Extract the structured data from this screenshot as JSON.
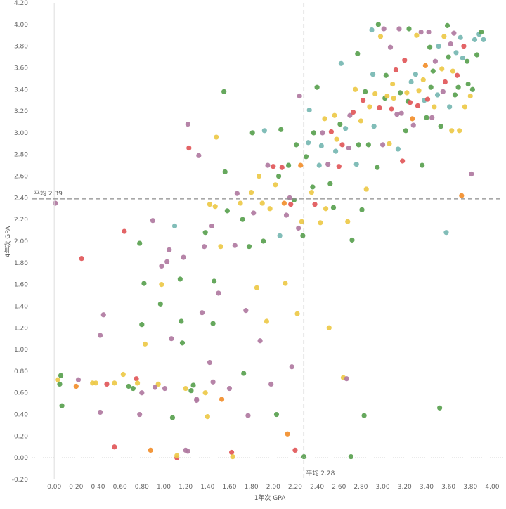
{
  "chart_data": {
    "type": "scatter",
    "title": "",
    "xlabel": "1年次 GPA",
    "ylabel": "4年次 GPA",
    "xlim": [
      -0.2,
      4.1
    ],
    "ylim": [
      -0.2,
      4.2
    ],
    "xticks": [
      "0.00",
      "0.20",
      "0.40",
      "0.60",
      "0.80",
      "1.00",
      "1.20",
      "1.40",
      "1.60",
      "1.80",
      "2.00",
      "2.20",
      "2.40",
      "2.60",
      "2.80",
      "3.00",
      "3.20",
      "3.40",
      "3.60",
      "3.80",
      "4.00"
    ],
    "yticks": [
      "-0.20",
      "0.00",
      "0.20",
      "0.40",
      "0.60",
      "0.80",
      "1.00",
      "1.20",
      "1.40",
      "1.60",
      "1.80",
      "2.00",
      "2.20",
      "2.40",
      "2.60",
      "2.80",
      "3.00",
      "3.20",
      "3.40",
      "3.60",
      "3.80",
      "4.00",
      "4.20"
    ],
    "grid": false,
    "reference_lines": [
      {
        "axis": "y",
        "value": 2.39,
        "label": "平均 2.39"
      },
      {
        "axis": "x",
        "value": 2.28,
        "label": "平均 2.28"
      }
    ],
    "palette": {
      "green": "#59a14f",
      "yellow": "#edc948",
      "purple": "#b07aa1",
      "red": "#e15759",
      "orange": "#f28e2b",
      "teal": "#76b7b2",
      "blue": "#4e79a7"
    },
    "points": [
      [
        0.03,
        0.72,
        "yellow"
      ],
      [
        0.06,
        0.76,
        "green"
      ],
      [
        0.05,
        0.68,
        "green"
      ],
      [
        0.07,
        0.48,
        "green"
      ],
      [
        0.01,
        2.35,
        "purple"
      ],
      [
        0.2,
        0.66,
        "orange"
      ],
      [
        0.22,
        0.72,
        "purple"
      ],
      [
        0.25,
        1.84,
        "red"
      ],
      [
        0.35,
        0.69,
        "yellow"
      ],
      [
        0.38,
        0.69,
        "yellow"
      ],
      [
        0.42,
        0.42,
        "purple"
      ],
      [
        0.45,
        1.32,
        "purple"
      ],
      [
        0.42,
        1.13,
        "purple"
      ],
      [
        0.48,
        0.68,
        "red"
      ],
      [
        0.55,
        0.69,
        "yellow"
      ],
      [
        0.55,
        0.1,
        "red"
      ],
      [
        0.63,
        0.77,
        "yellow"
      ],
      [
        0.64,
        2.09,
        "red"
      ],
      [
        0.68,
        0.66,
        "green"
      ],
      [
        0.72,
        0.64,
        "green"
      ],
      [
        0.75,
        0.73,
        "red"
      ],
      [
        0.76,
        0.69,
        "yellow"
      ],
      [
        0.8,
        0.6,
        "purple"
      ],
      [
        0.78,
        0.4,
        "purple"
      ],
      [
        0.78,
        1.98,
        "green"
      ],
      [
        0.8,
        1.23,
        "green"
      ],
      [
        0.82,
        1.61,
        "green"
      ],
      [
        0.83,
        1.05,
        "yellow"
      ],
      [
        0.88,
        0.07,
        "orange"
      ],
      [
        0.9,
        2.19,
        "purple"
      ],
      [
        0.95,
        0.68,
        "yellow"
      ],
      [
        0.92,
        0.65,
        "purple"
      ],
      [
        0.97,
        1.42,
        "green"
      ],
      [
        0.98,
        1.6,
        "yellow"
      ],
      [
        0.98,
        1.77,
        "purple"
      ],
      [
        1.01,
        0.64,
        "purple"
      ],
      [
        1.03,
        1.81,
        "purple"
      ],
      [
        1.05,
        1.92,
        "purple"
      ],
      [
        1.07,
        1.1,
        "purple"
      ],
      [
        1.08,
        0.37,
        "green"
      ],
      [
        1.1,
        2.14,
        "teal"
      ],
      [
        1.12,
        0.0,
        "red"
      ],
      [
        1.12,
        0.02,
        "yellow"
      ],
      [
        1.15,
        1.65,
        "green"
      ],
      [
        1.16,
        1.26,
        "green"
      ],
      [
        1.17,
        1.06,
        "green"
      ],
      [
        1.18,
        1.85,
        "purple"
      ],
      [
        1.2,
        0.07,
        "purple"
      ],
      [
        1.22,
        0.06,
        "purple"
      ],
      [
        1.2,
        0.64,
        "yellow"
      ],
      [
        1.22,
        3.08,
        "purple"
      ],
      [
        1.23,
        2.86,
        "red"
      ],
      [
        1.25,
        0.62,
        "green"
      ],
      [
        1.27,
        0.67,
        "green"
      ],
      [
        1.3,
        0.53,
        "purple"
      ],
      [
        1.3,
        0.54,
        "purple"
      ],
      [
        1.32,
        2.79,
        "purple"
      ],
      [
        1.35,
        1.34,
        "purple"
      ],
      [
        1.37,
        1.95,
        "purple"
      ],
      [
        1.38,
        2.08,
        "green"
      ],
      [
        1.38,
        0.6,
        "yellow"
      ],
      [
        1.4,
        0.38,
        "yellow"
      ],
      [
        1.42,
        0.88,
        "purple"
      ],
      [
        1.42,
        2.34,
        "yellow"
      ],
      [
        1.44,
        2.14,
        "purple"
      ],
      [
        1.45,
        0.7,
        "purple"
      ],
      [
        1.45,
        1.24,
        "green"
      ],
      [
        1.46,
        1.63,
        "green"
      ],
      [
        1.47,
        2.32,
        "yellow"
      ],
      [
        1.48,
        2.96,
        "yellow"
      ],
      [
        1.5,
        1.52,
        "purple"
      ],
      [
        1.52,
        1.95,
        "yellow"
      ],
      [
        1.53,
        0.54,
        "orange"
      ],
      [
        1.55,
        3.38,
        "green"
      ],
      [
        1.56,
        2.64,
        "green"
      ],
      [
        1.58,
        2.28,
        "green"
      ],
      [
        1.6,
        0.64,
        "purple"
      ],
      [
        1.62,
        0.05,
        "red"
      ],
      [
        1.63,
        0.01,
        "yellow"
      ],
      [
        1.65,
        1.96,
        "purple"
      ],
      [
        1.67,
        2.44,
        "purple"
      ],
      [
        1.7,
        2.35,
        "yellow"
      ],
      [
        1.72,
        2.2,
        "green"
      ],
      [
        1.73,
        0.78,
        "green"
      ],
      [
        1.75,
        1.36,
        "purple"
      ],
      [
        1.77,
        0.39,
        "purple"
      ],
      [
        1.78,
        1.95,
        "green"
      ],
      [
        1.8,
        2.45,
        "yellow"
      ],
      [
        1.81,
        3.0,
        "green"
      ],
      [
        1.82,
        2.26,
        "purple"
      ],
      [
        1.85,
        1.57,
        "yellow"
      ],
      [
        1.87,
        2.6,
        "yellow"
      ],
      [
        1.88,
        1.08,
        "purple"
      ],
      [
        1.9,
        2.35,
        "yellow"
      ],
      [
        1.91,
        2.0,
        "green"
      ],
      [
        1.92,
        3.02,
        "teal"
      ],
      [
        1.94,
        1.26,
        "yellow"
      ],
      [
        1.95,
        2.7,
        "purple"
      ],
      [
        1.97,
        2.3,
        "yellow"
      ],
      [
        1.98,
        0.68,
        "purple"
      ],
      [
        2.0,
        2.69,
        "red"
      ],
      [
        2.02,
        2.52,
        "yellow"
      ],
      [
        2.03,
        0.4,
        "green"
      ],
      [
        2.05,
        2.6,
        "green"
      ],
      [
        2.06,
        2.05,
        "teal"
      ],
      [
        2.07,
        3.03,
        "green"
      ],
      [
        2.08,
        2.68,
        "red"
      ],
      [
        2.1,
        2.35,
        "orange"
      ],
      [
        2.11,
        1.61,
        "yellow"
      ],
      [
        2.12,
        2.24,
        "purple"
      ],
      [
        2.13,
        0.22,
        "orange"
      ],
      [
        2.14,
        2.7,
        "green"
      ],
      [
        2.15,
        2.4,
        "purple"
      ],
      [
        2.16,
        2.34,
        "red"
      ],
      [
        2.17,
        0.84,
        "purple"
      ],
      [
        2.19,
        2.38,
        "green"
      ],
      [
        2.2,
        0.07,
        "red"
      ],
      [
        2.21,
        2.89,
        "green"
      ],
      [
        2.22,
        1.33,
        "yellow"
      ],
      [
        2.23,
        2.12,
        "purple"
      ],
      [
        2.24,
        3.34,
        "purple"
      ],
      [
        2.25,
        2.7,
        "orange"
      ],
      [
        2.26,
        2.18,
        "yellow"
      ],
      [
        2.27,
        2.05,
        "green"
      ],
      [
        2.28,
        0.01,
        "green"
      ],
      [
        2.3,
        2.78,
        "green"
      ],
      [
        2.32,
        2.91,
        "teal"
      ],
      [
        2.33,
        3.21,
        "teal"
      ],
      [
        2.35,
        2.45,
        "yellow"
      ],
      [
        2.36,
        2.5,
        "green"
      ],
      [
        2.37,
        3.0,
        "green"
      ],
      [
        2.38,
        2.34,
        "red"
      ],
      [
        2.4,
        3.42,
        "green"
      ],
      [
        2.42,
        2.7,
        "teal"
      ],
      [
        2.43,
        2.17,
        "yellow"
      ],
      [
        2.44,
        2.88,
        "teal"
      ],
      [
        2.45,
        3.0,
        "purple"
      ],
      [
        2.47,
        3.13,
        "yellow"
      ],
      [
        2.48,
        2.3,
        "yellow"
      ],
      [
        2.5,
        2.71,
        "purple"
      ],
      [
        2.51,
        1.2,
        "yellow"
      ],
      [
        2.52,
        2.53,
        "green"
      ],
      [
        2.53,
        3.01,
        "red"
      ],
      [
        2.55,
        2.31,
        "green"
      ],
      [
        2.56,
        3.16,
        "yellow"
      ],
      [
        2.57,
        2.83,
        "teal"
      ],
      [
        2.58,
        2.94,
        "yellow"
      ],
      [
        2.6,
        2.69,
        "red"
      ],
      [
        2.61,
        3.08,
        "green"
      ],
      [
        2.62,
        3.64,
        "teal"
      ],
      [
        2.63,
        2.89,
        "red"
      ],
      [
        2.64,
        0.74,
        "yellow"
      ],
      [
        2.66,
        3.04,
        "teal"
      ],
      [
        2.67,
        0.73,
        "purple"
      ],
      [
        2.68,
        2.18,
        "yellow"
      ],
      [
        2.69,
        2.86,
        "purple"
      ],
      [
        2.7,
        3.16,
        "purple"
      ],
      [
        2.71,
        0.01,
        "green"
      ],
      [
        2.72,
        2.01,
        "green"
      ],
      [
        2.73,
        3.19,
        "red"
      ],
      [
        2.75,
        3.4,
        "yellow"
      ],
      [
        2.76,
        2.71,
        "teal"
      ],
      [
        2.77,
        3.73,
        "green"
      ],
      [
        2.78,
        2.89,
        "green"
      ],
      [
        2.8,
        3.11,
        "yellow"
      ],
      [
        2.81,
        2.29,
        "green"
      ],
      [
        2.82,
        3.3,
        "red"
      ],
      [
        2.83,
        0.39,
        "green"
      ],
      [
        2.84,
        3.38,
        "green"
      ],
      [
        2.85,
        2.48,
        "yellow"
      ],
      [
        2.87,
        2.89,
        "green"
      ],
      [
        2.88,
        3.24,
        "yellow"
      ],
      [
        2.9,
        3.95,
        "teal"
      ],
      [
        2.91,
        3.54,
        "teal"
      ],
      [
        2.92,
        3.06,
        "teal"
      ],
      [
        2.93,
        3.36,
        "yellow"
      ],
      [
        2.95,
        2.68,
        "green"
      ],
      [
        2.96,
        4.0,
        "green"
      ],
      [
        2.97,
        3.23,
        "red"
      ],
      [
        2.98,
        3.89,
        "yellow"
      ],
      [
        3.0,
        2.89,
        "purple"
      ],
      [
        3.01,
        3.96,
        "purple"
      ],
      [
        3.02,
        3.32,
        "green"
      ],
      [
        3.03,
        3.53,
        "green"
      ],
      [
        3.04,
        3.34,
        "yellow"
      ],
      [
        3.06,
        2.9,
        "yellow"
      ],
      [
        3.07,
        3.79,
        "purple"
      ],
      [
        3.08,
        3.22,
        "red"
      ],
      [
        3.09,
        3.45,
        "yellow"
      ],
      [
        3.1,
        3.32,
        "yellow"
      ],
      [
        3.12,
        3.58,
        "red"
      ],
      [
        3.13,
        3.17,
        "purple"
      ],
      [
        3.14,
        2.85,
        "teal"
      ],
      [
        3.15,
        3.96,
        "purple"
      ],
      [
        3.16,
        3.37,
        "green"
      ],
      [
        3.17,
        3.18,
        "purple"
      ],
      [
        3.18,
        2.74,
        "red"
      ],
      [
        3.2,
        3.67,
        "red"
      ],
      [
        3.21,
        3.02,
        "green"
      ],
      [
        3.22,
        3.37,
        "yellow"
      ],
      [
        3.23,
        3.29,
        "green"
      ],
      [
        3.24,
        3.96,
        "green"
      ],
      [
        3.25,
        3.28,
        "red"
      ],
      [
        3.26,
        3.47,
        "teal"
      ],
      [
        3.27,
        3.13,
        "orange"
      ],
      [
        3.28,
        3.07,
        "purple"
      ],
      [
        3.3,
        3.54,
        "teal"
      ],
      [
        3.31,
        3.9,
        "yellow"
      ],
      [
        3.32,
        3.25,
        "red"
      ],
      [
        3.33,
        3.39,
        "yellow"
      ],
      [
        3.35,
        3.93,
        "purple"
      ],
      [
        3.36,
        2.7,
        "green"
      ],
      [
        3.37,
        3.49,
        "yellow"
      ],
      [
        3.38,
        3.3,
        "teal"
      ],
      [
        3.39,
        3.62,
        "orange"
      ],
      [
        3.4,
        3.14,
        "green"
      ],
      [
        3.41,
        3.31,
        "red"
      ],
      [
        3.42,
        3.93,
        "purple"
      ],
      [
        3.43,
        3.79,
        "green"
      ],
      [
        3.44,
        3.42,
        "green"
      ],
      [
        3.45,
        3.14,
        "purple"
      ],
      [
        3.46,
        3.57,
        "green"
      ],
      [
        3.47,
        3.24,
        "yellow"
      ],
      [
        3.48,
        3.66,
        "purple"
      ],
      [
        3.5,
        3.35,
        "teal"
      ],
      [
        3.51,
        3.8,
        "teal"
      ],
      [
        3.52,
        0.46,
        "green"
      ],
      [
        3.53,
        3.06,
        "green"
      ],
      [
        3.54,
        3.59,
        "yellow"
      ],
      [
        3.55,
        3.38,
        "purple"
      ],
      [
        3.56,
        3.89,
        "yellow"
      ],
      [
        3.57,
        3.47,
        "red"
      ],
      [
        3.58,
        2.08,
        "teal"
      ],
      [
        3.59,
        3.99,
        "green"
      ],
      [
        3.6,
        3.7,
        "green"
      ],
      [
        3.61,
        3.24,
        "teal"
      ],
      [
        3.62,
        3.82,
        "purple"
      ],
      [
        3.63,
        3.02,
        "yellow"
      ],
      [
        3.64,
        3.57,
        "yellow"
      ],
      [
        3.65,
        3.92,
        "purple"
      ],
      [
        3.66,
        3.35,
        "green"
      ],
      [
        3.67,
        3.74,
        "teal"
      ],
      [
        3.68,
        3.53,
        "red"
      ],
      [
        3.69,
        3.42,
        "green"
      ],
      [
        3.7,
        3.02,
        "yellow"
      ],
      [
        3.71,
        3.88,
        "teal"
      ],
      [
        3.72,
        2.42,
        "orange"
      ],
      [
        3.73,
        3.69,
        "teal"
      ],
      [
        3.74,
        3.8,
        "red"
      ],
      [
        3.75,
        3.24,
        "yellow"
      ],
      [
        3.77,
        3.66,
        "green"
      ],
      [
        3.78,
        3.45,
        "green"
      ],
      [
        3.8,
        3.34,
        "yellow"
      ],
      [
        3.81,
        2.62,
        "purple"
      ],
      [
        3.82,
        3.4,
        "green"
      ],
      [
        3.84,
        3.86,
        "teal"
      ],
      [
        3.86,
        3.72,
        "green"
      ],
      [
        3.88,
        3.91,
        "teal"
      ],
      [
        3.9,
        3.93,
        "green"
      ],
      [
        3.92,
        3.86,
        "teal"
      ]
    ]
  }
}
